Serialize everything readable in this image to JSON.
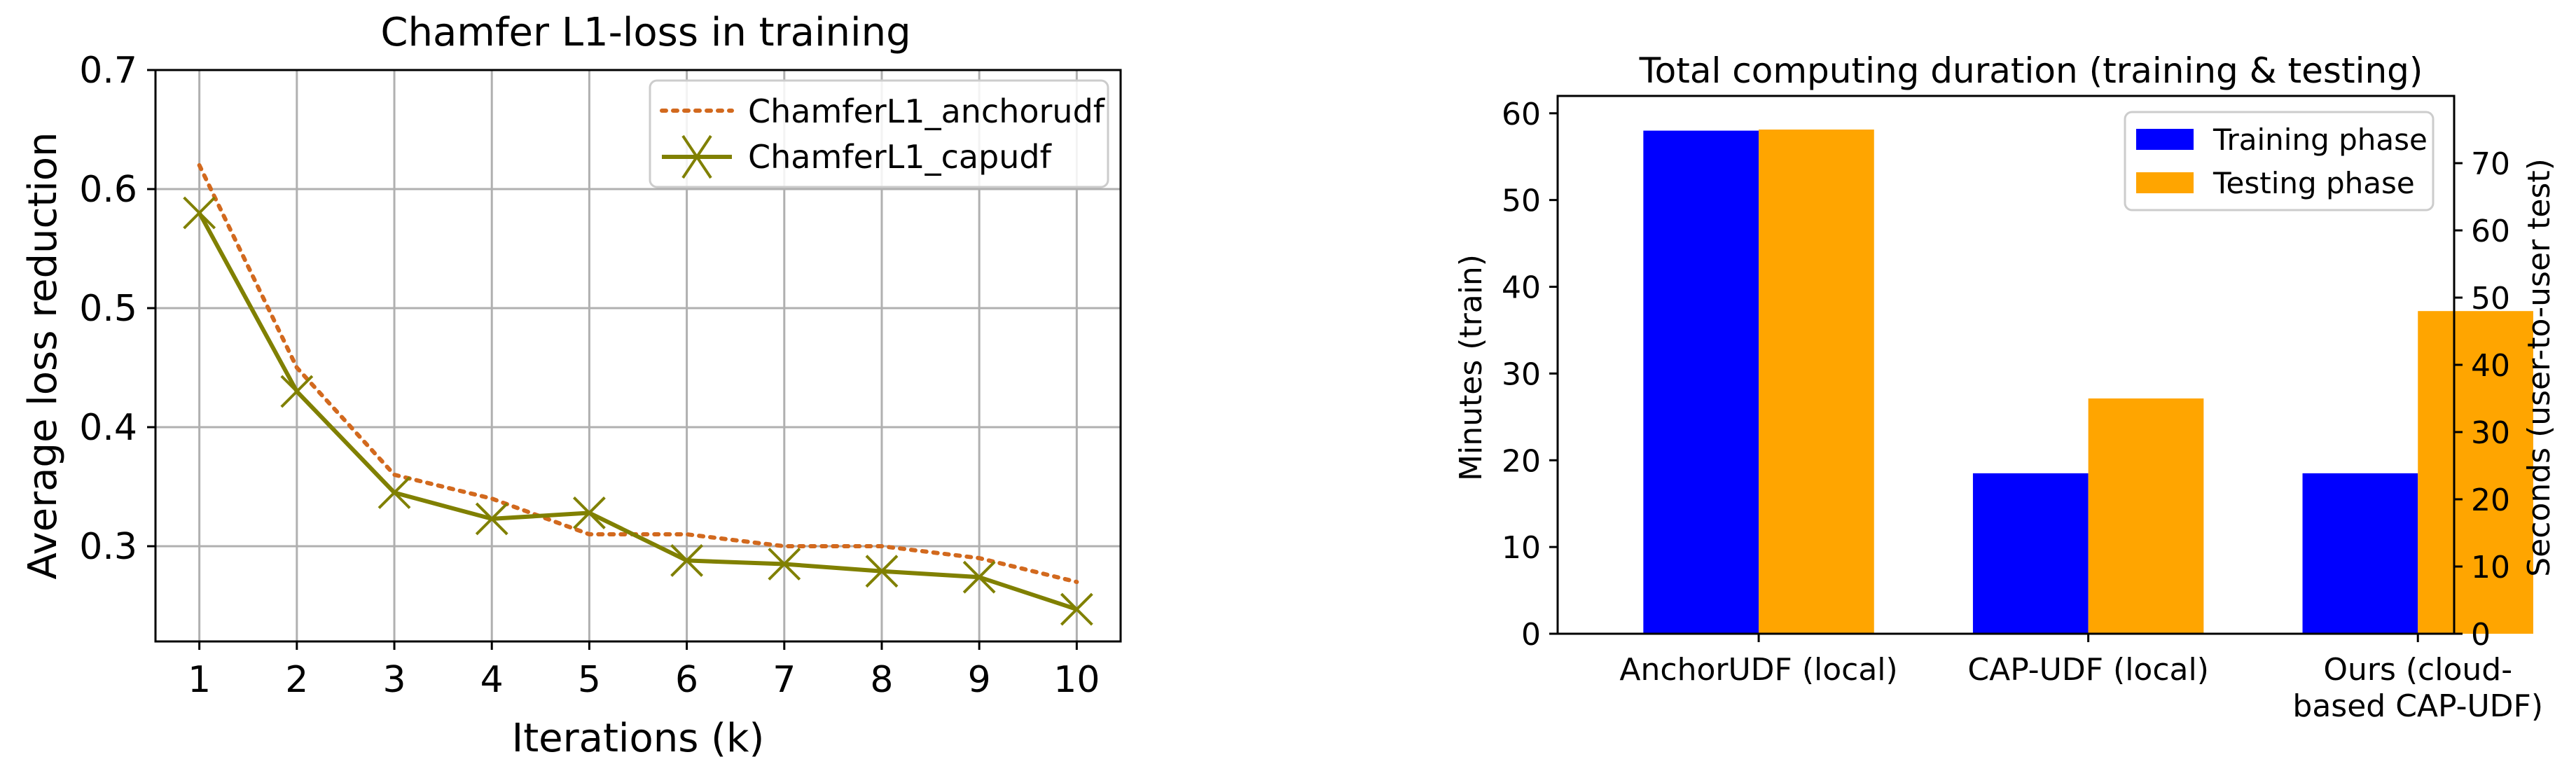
{
  "chart_data": [
    {
      "type": "line",
      "title": "Chamfer L1-loss in training",
      "xlabel": "Iterations (k)",
      "ylabel": "Average loss reduction",
      "x": [
        1,
        2,
        3,
        4,
        5,
        6,
        7,
        8,
        9,
        10
      ],
      "xlim": [
        0.55,
        10.45
      ],
      "ylim": [
        0.22,
        0.7
      ],
      "xticks": [
        "1",
        "2",
        "3",
        "4",
        "5",
        "6",
        "7",
        "8",
        "9",
        "10"
      ],
      "yticks": [
        "0.3",
        "0.4",
        "0.5",
        "0.6",
        "0.7"
      ],
      "grid": true,
      "legend_position": "top-right",
      "series": [
        {
          "name": "ChamferL1_anchorudf",
          "color": "#D2691E",
          "style": "dotted",
          "values": [
            0.62,
            0.45,
            0.36,
            0.34,
            0.31,
            0.31,
            0.3,
            0.3,
            0.29,
            0.27
          ]
        },
        {
          "name": "ChamferL1_capudf",
          "color": "#808000",
          "style": "solid-x-markers",
          "values": [
            0.58,
            0.43,
            0.345,
            0.323,
            0.328,
            0.288,
            0.285,
            0.279,
            0.274,
            0.247
          ]
        }
      ]
    },
    {
      "type": "bar",
      "title": "Total computing duration (training & testing)",
      "xlabel": "",
      "ylabel": "Minutes (train)",
      "ylabel_right": "Seconds (user-to-user test)",
      "categories": [
        [
          "AnchorUDF (local)"
        ],
        [
          "CAP-UDF (local)"
        ],
        [
          "Ours (cloud-",
          "based CAP-UDF)"
        ]
      ],
      "ylim": [
        0,
        62
      ],
      "ylim_right": [
        0,
        80
      ],
      "yticks": [
        "0",
        "10",
        "20",
        "30",
        "40",
        "50",
        "60"
      ],
      "yticks_right": [
        "0",
        "10",
        "20",
        "30",
        "40",
        "50",
        "60",
        "70"
      ],
      "grid": false,
      "legend_position": "top-right",
      "series": [
        {
          "name": "Training phase",
          "color": "#0000FF",
          "axis": "left",
          "unit": "minutes",
          "values": [
            58,
            18.5,
            18.5
          ]
        },
        {
          "name": "Testing phase",
          "color": "#FFA500",
          "axis": "right",
          "unit": "seconds",
          "values": [
            75,
            35,
            48
          ]
        }
      ]
    }
  ]
}
